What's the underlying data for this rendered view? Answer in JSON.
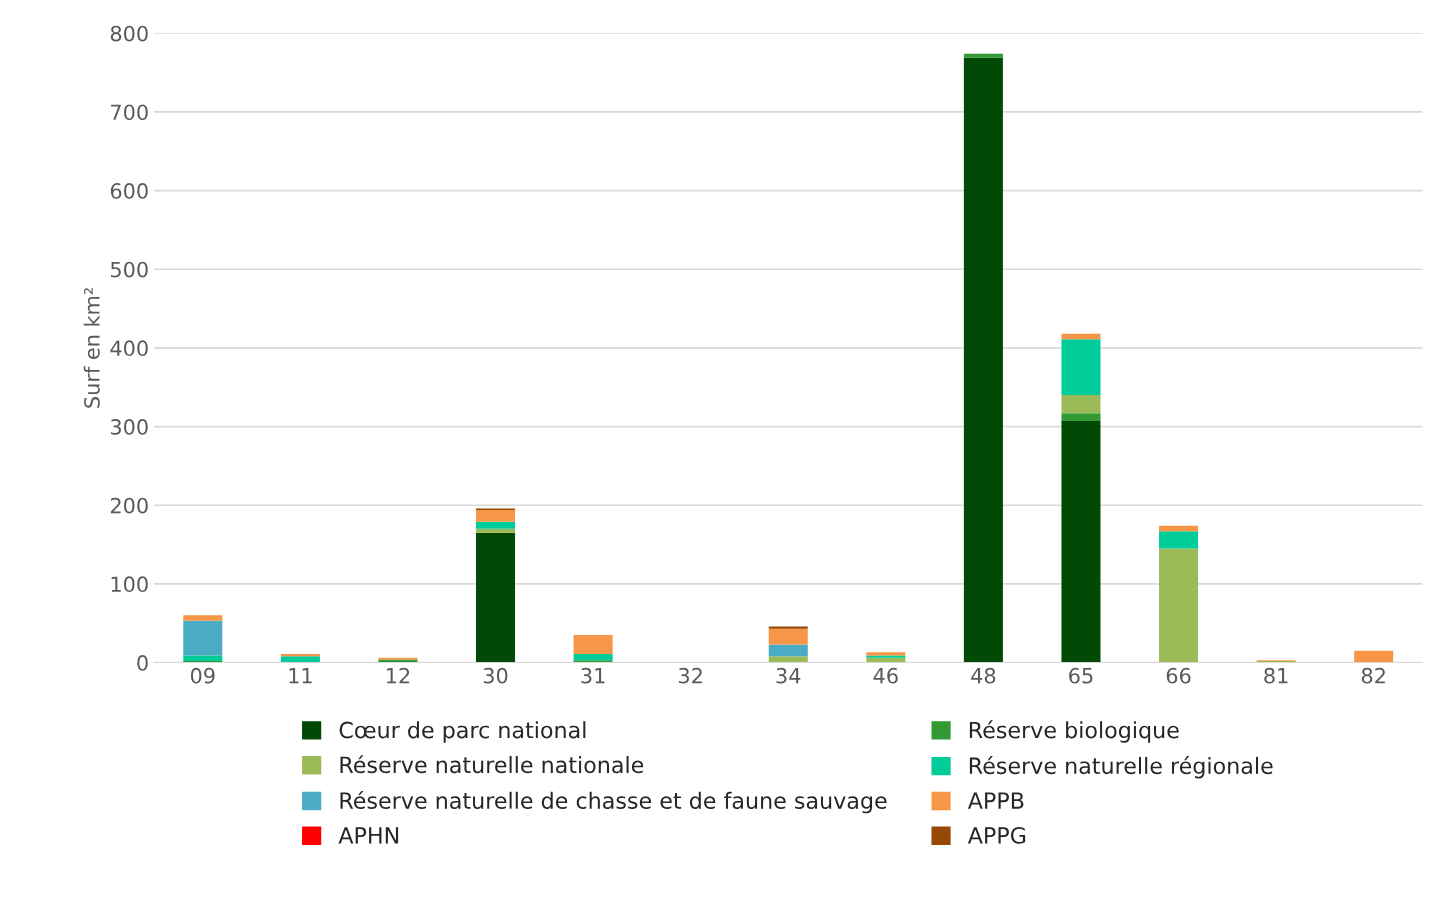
{
  "chart_data": {
    "type": "bar",
    "stacked": true,
    "ylabel": "Surf en km²",
    "categories": [
      "09",
      "11",
      "12",
      "30",
      "31",
      "32",
      "34",
      "46",
      "48",
      "65",
      "66",
      "81",
      "82"
    ],
    "ylim": [
      0,
      800
    ],
    "yticks": [
      0,
      100,
      200,
      300,
      400,
      500,
      600,
      700,
      800
    ],
    "grid": "y",
    "legend": "bottom",
    "series": [
      {
        "name": "Cœur de parc national",
        "color": "#004a06",
        "values": [
          0,
          0,
          0,
          165,
          0,
          0,
          0,
          0,
          769,
          307,
          0,
          0,
          0
        ]
      },
      {
        "name": "Réserve biologique",
        "color": "#339933",
        "values": [
          2,
          0,
          4,
          0,
          3,
          0,
          0,
          0,
          5,
          10,
          0,
          0,
          0
        ]
      },
      {
        "name": "Réserve naturelle nationale",
        "color": "#9bbb59",
        "values": [
          0,
          0,
          0,
          5,
          0,
          0,
          8,
          6,
          0,
          23,
          145,
          2,
          0
        ]
      },
      {
        "name": "Réserve naturelle régionale",
        "color": "#00cc99",
        "values": [
          7,
          8,
          0,
          9,
          8,
          0,
          0,
          3,
          0,
          71,
          22,
          0,
          0
        ]
      },
      {
        "name": "Réserve naturelle de chasse et de faune sauvage",
        "color": "#4bacc6",
        "values": [
          44,
          0,
          0,
          0,
          0,
          0,
          15,
          0,
          0,
          0,
          0,
          0,
          0
        ]
      },
      {
        "name": "APPB",
        "color": "#f79646",
        "values": [
          7,
          3,
          2,
          15,
          24,
          0,
          20,
          4,
          0,
          7,
          7,
          1,
          15
        ]
      },
      {
        "name": "APHN",
        "color": "#ff0000",
        "values": [
          0,
          0,
          0,
          0,
          0,
          0,
          0,
          0,
          0,
          0,
          0,
          0,
          0
        ]
      },
      {
        "name": "APPG",
        "color": "#974706",
        "values": [
          0,
          0,
          0,
          2,
          0,
          0,
          3,
          0,
          0,
          0,
          0,
          0,
          0
        ]
      }
    ]
  }
}
